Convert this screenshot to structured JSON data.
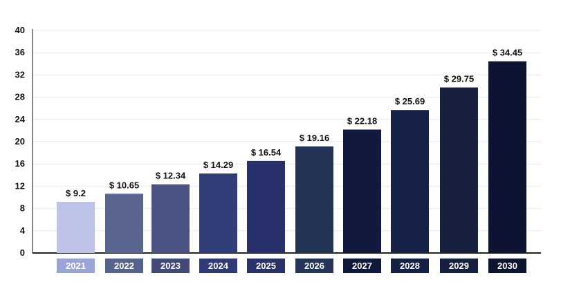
{
  "chart_data": {
    "type": "bar",
    "title": "",
    "xlabel": "",
    "ylabel": "",
    "categories": [
      "2021",
      "2022",
      "2023",
      "2024",
      "2025",
      "2026",
      "2027",
      "2028",
      "2029",
      "2030"
    ],
    "values": [
      9.2,
      10.65,
      12.34,
      14.29,
      16.54,
      19.16,
      22.18,
      25.69,
      29.75,
      34.45
    ],
    "data_labels": [
      "$ 9.2",
      "$ 10.65",
      "$ 12.34",
      "$ 14.29",
      "$ 16.54",
      "$ 19.16",
      "$ 22.18",
      "$ 25.69",
      "$ 29.75",
      "$ 34.45"
    ],
    "ylim": [
      0,
      40
    ],
    "y_ticks": [
      0,
      4,
      8,
      12,
      16,
      20,
      24,
      28,
      32,
      36,
      40
    ],
    "grid": true,
    "legend": "none",
    "bar_colors": [
      "#bcc3e6",
      "#5a6690",
      "#4a5384",
      "#313d76",
      "#27306a",
      "#223356",
      "#11193e",
      "#152147",
      "#17203f",
      "#0c1432"
    ],
    "category_label_colors": [
      "#9aa4d6",
      "#56648d",
      "#414a79",
      "#303b75",
      "#2a326a",
      "#243559",
      "#10183b",
      "#142044",
      "#171f3f",
      "#0d1430"
    ]
  }
}
